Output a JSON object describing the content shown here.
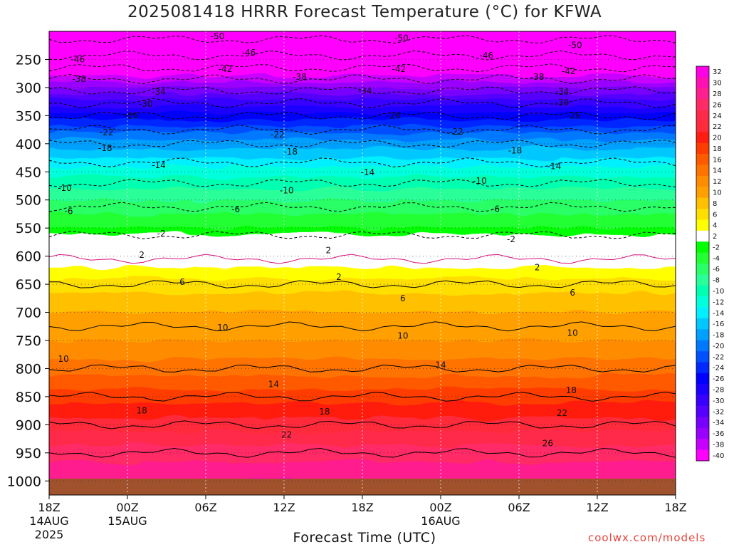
{
  "title": "2025081418 HRRR Forecast Temperature (°C) for KFWA",
  "credit": "coolwx.com/models",
  "chart_data": {
    "type": "heatmap",
    "title": "2025081418 HRRR Forecast Temperature (°C) for KFWA",
    "xlabel": "Forecast Time (UTC)",
    "ylabel": "",
    "x_axis": {
      "range_hours": [
        0,
        48
      ],
      "ticks": [
        {
          "hour": 0,
          "label": "18Z",
          "sub1": "14AUG",
          "sub2": "2025"
        },
        {
          "hour": 6,
          "label": "00Z",
          "sub1": "15AUG",
          "sub2": ""
        },
        {
          "hour": 12,
          "label": "06Z",
          "sub1": "",
          "sub2": ""
        },
        {
          "hour": 18,
          "label": "12Z",
          "sub1": "",
          "sub2": ""
        },
        {
          "hour": 24,
          "label": "18Z",
          "sub1": "",
          "sub2": ""
        },
        {
          "hour": 30,
          "label": "00Z",
          "sub1": "16AUG",
          "sub2": ""
        },
        {
          "hour": 36,
          "label": "06Z",
          "sub1": "",
          "sub2": ""
        },
        {
          "hour": 42,
          "label": "12Z",
          "sub1": "",
          "sub2": ""
        },
        {
          "hour": 48,
          "label": "18Z",
          "sub1": "",
          "sub2": ""
        }
      ]
    },
    "y_axis": {
      "unit": "hPa",
      "range": [
        200,
        1025
      ],
      "ticks": [
        250,
        300,
        350,
        400,
        450,
        500,
        550,
        600,
        650,
        700,
        750,
        800,
        850,
        900,
        950,
        1000
      ]
    },
    "contour_levels_c": [
      -50,
      -46,
      -42,
      -38,
      -34,
      -30,
      -26,
      -22,
      -18,
      -14,
      -10,
      -6,
      -2,
      2,
      6,
      10,
      14,
      18,
      22,
      26
    ],
    "temperature_profile_hpa_to_c": [
      [
        200,
        -52
      ],
      [
        250,
        -45
      ],
      [
        300,
        -35
      ],
      [
        350,
        -26
      ],
      [
        400,
        -18
      ],
      [
        450,
        -12
      ],
      [
        500,
        -7
      ],
      [
        550,
        -3
      ],
      [
        575,
        -1
      ],
      [
        590,
        1
      ],
      [
        620,
        3
      ],
      [
        650,
        6
      ],
      [
        700,
        9
      ],
      [
        750,
        11
      ],
      [
        800,
        14
      ],
      [
        850,
        18
      ],
      [
        900,
        22
      ],
      [
        950,
        26
      ],
      [
        1000,
        29
      ]
    ],
    "colorbar": {
      "labels": [
        "32",
        "30",
        "28",
        "26",
        "24",
        "22",
        "20",
        "18",
        "16",
        "14",
        "12",
        "10",
        "8",
        "6",
        "4",
        "2",
        "-2",
        "-4",
        "-6",
        "-8",
        "-10",
        "-12",
        "-14",
        "-16",
        "-18",
        "-20",
        "-22",
        "-24",
        "-26",
        "-28",
        "-30",
        "-32",
        "-34",
        "-36",
        "-38",
        "-40"
      ],
      "colors": [
        "#ff00e6",
        "#ff10b4",
        "#ff1f8e",
        "#ff2a66",
        "#ff2a4a",
        "#ff2a3a",
        "#ff1c10",
        "#ff3c00",
        "#ff5a00",
        "#ff7300",
        "#ff8c00",
        "#ffa000",
        "#ffc000",
        "#ffdf00",
        "#ffff00",
        "#ffffff",
        "#00ff00",
        "#22ff33",
        "#29ff66",
        "#29ff99",
        "#00ffb0",
        "#00ffdd",
        "#00f0ff",
        "#00c8ff",
        "#00a0ff",
        "#0078ff",
        "#0050ff",
        "#0028ff",
        "#0000ff",
        "#1c00ff",
        "#3800ff",
        "#5500ff",
        "#7800ff",
        "#9a00ff",
        "#c800ff",
        "#ff00ff"
      ]
    },
    "contour_labels": [
      {
        "value": "-50",
        "hour": 12.9,
        "hpa": 209
      },
      {
        "value": "-50",
        "hour": 27.0,
        "hpa": 212
      },
      {
        "value": "-50",
        "hour": 40.3,
        "hpa": 225
      },
      {
        "value": "-46",
        "hour": 2.2,
        "hpa": 250
      },
      {
        "value": "-46",
        "hour": 15.3,
        "hpa": 238
      },
      {
        "value": "-46",
        "hour": 33.5,
        "hpa": 243
      },
      {
        "value": "-42",
        "hour": 13.5,
        "hpa": 267
      },
      {
        "value": "-42",
        "hour": 26.8,
        "hpa": 267
      },
      {
        "value": "-42",
        "hour": 39.8,
        "hpa": 271
      },
      {
        "value": "-38",
        "hour": 2.3,
        "hpa": 285
      },
      {
        "value": "-38",
        "hour": 19.2,
        "hpa": 281
      },
      {
        "value": "-38",
        "hour": 37.4,
        "hpa": 281
      },
      {
        "value": "-34",
        "hour": 8.4,
        "hpa": 308
      },
      {
        "value": "-34",
        "hour": 24.2,
        "hpa": 306
      },
      {
        "value": "-34",
        "hour": 39.3,
        "hpa": 307
      },
      {
        "value": "-30",
        "hour": 7.4,
        "hpa": 329
      },
      {
        "value": "-30",
        "hour": 39.3,
        "hpa": 327
      },
      {
        "value": "-26",
        "hour": 6.3,
        "hpa": 350
      },
      {
        "value": "-26",
        "hour": 26.4,
        "hpa": 350
      },
      {
        "value": "-26",
        "hour": 40.2,
        "hpa": 350
      },
      {
        "value": "-22",
        "hour": 4.4,
        "hpa": 380
      },
      {
        "value": "-22",
        "hour": 17.5,
        "hpa": 384
      },
      {
        "value": "-22",
        "hour": 31.2,
        "hpa": 379
      },
      {
        "value": "-18",
        "hour": 4.3,
        "hpa": 408
      },
      {
        "value": "-18",
        "hour": 18.5,
        "hpa": 414
      },
      {
        "value": "-18",
        "hour": 35.7,
        "hpa": 412
      },
      {
        "value": "-14",
        "hour": 8.4,
        "hpa": 438
      },
      {
        "value": "-14",
        "hour": 24.4,
        "hpa": 451
      },
      {
        "value": "-14",
        "hour": 38.7,
        "hpa": 440
      },
      {
        "value": "-10",
        "hour": 1.2,
        "hpa": 479
      },
      {
        "value": "-10",
        "hour": 18.2,
        "hpa": 483
      },
      {
        "value": "-10",
        "hour": 33.0,
        "hpa": 466
      },
      {
        "value": "-6",
        "hour": 1.5,
        "hpa": 520
      },
      {
        "value": "-6",
        "hour": 14.3,
        "hpa": 517
      },
      {
        "value": "-6",
        "hour": 34.2,
        "hpa": 516
      },
      {
        "value": "-2",
        "hour": 8.6,
        "hpa": 560
      },
      {
        "value": "-2",
        "hour": 35.4,
        "hpa": 570
      },
      {
        "value": "2",
        "hour": 7.1,
        "hpa": 598
      },
      {
        "value": "2",
        "hour": 21.4,
        "hpa": 590
      },
      {
        "value": "2",
        "hour": 22.2,
        "hpa": 637
      },
      {
        "value": "2",
        "hour": 37.4,
        "hpa": 620
      },
      {
        "value": "6",
        "hour": 10.2,
        "hpa": 646
      },
      {
        "value": "6",
        "hour": 27.1,
        "hpa": 675
      },
      {
        "value": "6",
        "hour": 40.1,
        "hpa": 665
      },
      {
        "value": "10",
        "hour": 1.1,
        "hpa": 783
      },
      {
        "value": "10",
        "hour": 13.3,
        "hpa": 727
      },
      {
        "value": "10",
        "hour": 27.1,
        "hpa": 742
      },
      {
        "value": "10",
        "hour": 40.1,
        "hpa": 737
      },
      {
        "value": "14",
        "hour": 17.2,
        "hpa": 828
      },
      {
        "value": "14",
        "hour": 30.0,
        "hpa": 794
      },
      {
        "value": "18",
        "hour": 7.1,
        "hpa": 875
      },
      {
        "value": "18",
        "hour": 21.1,
        "hpa": 877
      },
      {
        "value": "18",
        "hour": 40.0,
        "hpa": 839
      },
      {
        "value": "22",
        "hour": 18.2,
        "hpa": 918
      },
      {
        "value": "22",
        "hour": 39.3,
        "hpa": 879
      },
      {
        "value": "26",
        "hour": 38.2,
        "hpa": 933
      }
    ]
  }
}
